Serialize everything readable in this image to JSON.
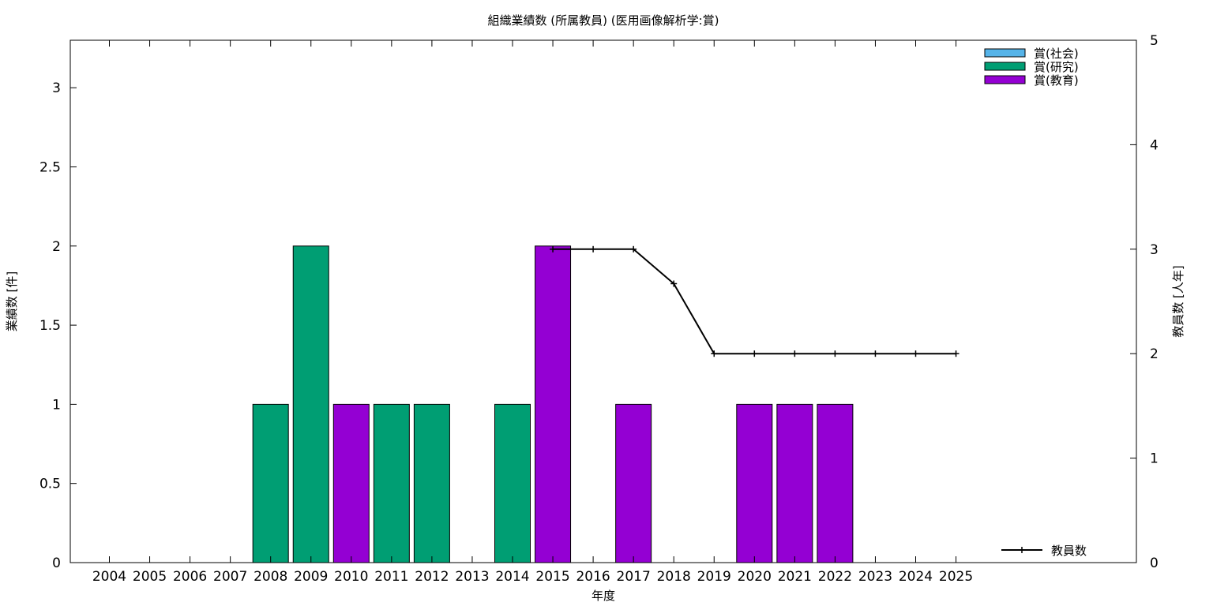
{
  "chart_data": {
    "type": "bar",
    "title": "組織業績数 (所属教員) (医用画像解析学:賞)",
    "xlabel": "年度",
    "ylabel_left": "業績数 [件]",
    "ylabel_right": "教員数 [人年]",
    "categories": [
      "2004",
      "2005",
      "2006",
      "2007",
      "2008",
      "2009",
      "2010",
      "2011",
      "2012",
      "2013",
      "2014",
      "2015",
      "2016",
      "2017",
      "2018",
      "2019",
      "2020",
      "2021",
      "2022",
      "2023",
      "2024",
      "2025"
    ],
    "ylim_left": [
      0,
      3.3
    ],
    "yticks_left": [
      0,
      0.5,
      1,
      1.5,
      2,
      2.5,
      3
    ],
    "ylim_right": [
      0,
      5
    ],
    "yticks_right": [
      0,
      1,
      2,
      3,
      4,
      5
    ],
    "grid": false,
    "legend_position": "top-right",
    "colors": {
      "social": "#56b4e9",
      "research": "#009e73",
      "education": "#9400d3",
      "line": "#000000"
    },
    "series": [
      {
        "name": "賞(社会)",
        "key": "social",
        "values": [
          0,
          0,
          0,
          0,
          0,
          0,
          0,
          0,
          0,
          0,
          0,
          0,
          0,
          0,
          0,
          0,
          0,
          0,
          0,
          0,
          0,
          0
        ]
      },
      {
        "name": "賞(研究)",
        "key": "research",
        "values": [
          0,
          0,
          0,
          0,
          1,
          2,
          0,
          1,
          1,
          0,
          1,
          0,
          0,
          0,
          0,
          0,
          0,
          0,
          0,
          0,
          0,
          0
        ]
      },
      {
        "name": "賞(教育)",
        "key": "education",
        "values": [
          0,
          0,
          0,
          0,
          0,
          0,
          1,
          0,
          0,
          0,
          0,
          2,
          0,
          1,
          0,
          0,
          1,
          1,
          1,
          0,
          0,
          0
        ]
      }
    ],
    "line_series": {
      "name": "教員数",
      "axis": "right",
      "x": [
        "2015",
        "2016",
        "2017",
        "2018",
        "2019",
        "2020",
        "2021",
        "2022",
        "2023",
        "2024",
        "2025"
      ],
      "values": [
        3,
        3,
        3,
        2.67,
        2,
        2,
        2,
        2,
        2,
        2,
        2
      ]
    }
  }
}
